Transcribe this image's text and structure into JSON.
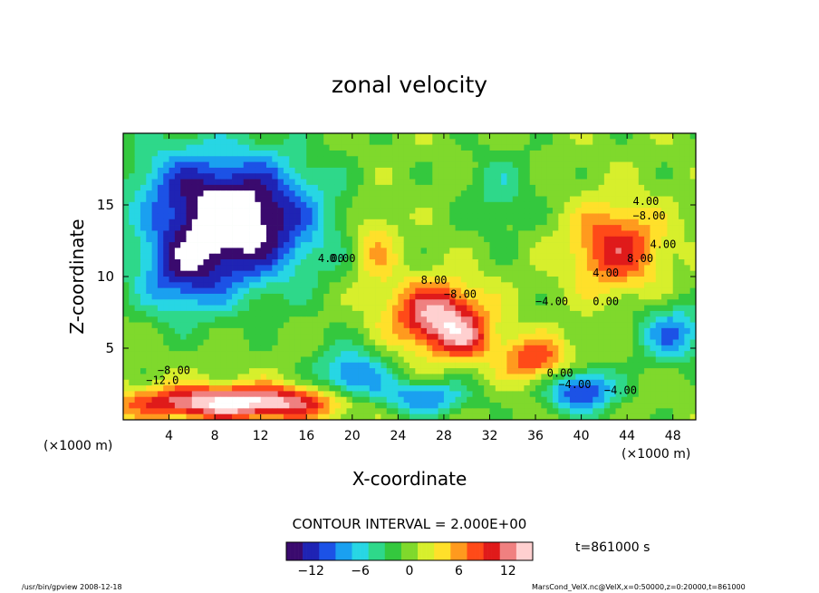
{
  "chart_data": {
    "type": "heatmap",
    "title": "zonal velocity",
    "xlabel": "X-coordinate",
    "ylabel": "Z-coordinate",
    "x_unit_left": "(×1000 m)",
    "x_unit_right": "(×1000 m)",
    "xlim": [
      0,
      50
    ],
    "ylim": [
      0,
      20
    ],
    "x_ticks": [
      4,
      8,
      12,
      16,
      20,
      24,
      28,
      32,
      36,
      40,
      44,
      48
    ],
    "x_tick_labels": [
      "4",
      "8",
      "12",
      "16",
      "20",
      "24",
      "28",
      "32",
      "36",
      "40",
      "44",
      "48"
    ],
    "y_ticks": [
      5,
      10,
      15
    ],
    "y_tick_labels": [
      "5",
      "10",
      "15"
    ],
    "contour_interval_text": "CONTOUR INTERVAL = 2.000E+00",
    "time_text": "t=861000 s",
    "colorbar": {
      "range": [
        -15,
        15
      ],
      "ticks": [
        -12,
        -6,
        0,
        6,
        12
      ],
      "tick_labels": [
        "−12",
        "−6",
        "0",
        "6",
        "12"
      ],
      "palette": [
        "#3a0a6e",
        "#1f23b4",
        "#1c52e6",
        "#1aa0f0",
        "#27d6e4",
        "#2ed88a",
        "#34c83e",
        "#7fd92c",
        "#d7ef2c",
        "#ffe02a",
        "#ff9a1e",
        "#ff4a18",
        "#e01a1a",
        "#f08080",
        "#ffd0d0"
      ]
    },
    "contour_labels": [
      "4.00",
      "−8.00",
      "−4.00",
      "4.00",
      "0.00",
      "0.00",
      "−12.0",
      "−4.00",
      "−8.00",
      "4.00",
      "4.00",
      "8.00",
      "8.00",
      "0.00",
      "−4.00",
      "−8.00"
    ],
    "features": [
      {
        "name": "positive jet core",
        "x_center": 28,
        "z_center": 7,
        "value_max": 14
      },
      {
        "name": "upper-right positive region",
        "x_center": 43,
        "z_center": 12,
        "value_max": 10
      },
      {
        "name": "lower-center positive region",
        "x_center": 35,
        "z_center": 4,
        "value_max": 10
      },
      {
        "name": "upper-left strong negative region",
        "x_center": 10,
        "z_center": 14,
        "value_min": -15
      },
      {
        "name": "bottom-left strong positive band",
        "x_center": 10,
        "z_center": 2,
        "value_max": 14
      }
    ]
  },
  "footer": {
    "left": "/usr/bin/gpview  2008-12-18",
    "right": "MarsCond_VelX.nc@VelX,x=0:50000,z=0:20000,t=861000"
  }
}
